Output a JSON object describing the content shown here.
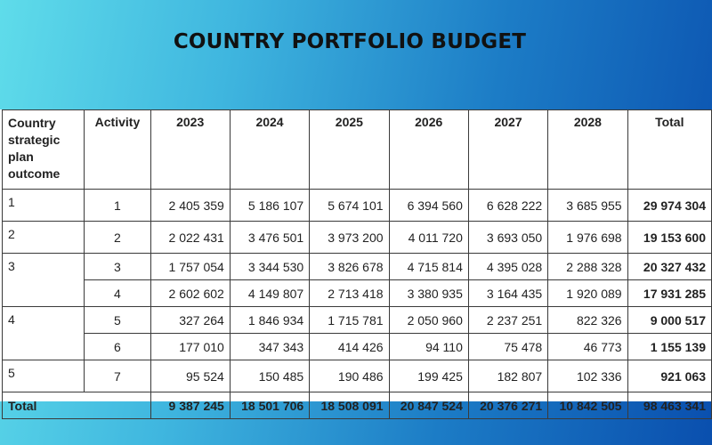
{
  "title": "COUNTRY PORTFOLIO BUDGET",
  "table": {
    "headers": {
      "outcome": "Country strategic plan outcome",
      "activity": "Activity",
      "years": [
        "2023",
        "2024",
        "2025",
        "2026",
        "2027",
        "2028"
      ],
      "total": "Total"
    },
    "rows": [
      {
        "outcome": "1",
        "activity": "1",
        "values": [
          "2 405 359",
          "5 186 107",
          "5 674 101",
          "6 394 560",
          "6 628 222",
          "3 685 955"
        ],
        "total": "29 974 304"
      },
      {
        "outcome": "2",
        "activity": "2",
        "values": [
          "2 022 431",
          "3 476 501",
          "3 973 200",
          "4 011 720",
          "3 693 050",
          "1 976 698"
        ],
        "total": "19 153 600"
      },
      {
        "outcome": "3",
        "activity": "3",
        "values": [
          "1 757 054",
          "3 344 530",
          "3 826 678",
          "4 715 814",
          "4 395 028",
          "2 288 328"
        ],
        "total": "20 327 432"
      },
      {
        "outcome": "",
        "activity": "4",
        "values": [
          "2 602 602",
          "4 149 807",
          "2 713 418",
          "3 380 935",
          "3 164 435",
          "1 920 089"
        ],
        "total": "17 931 285"
      },
      {
        "outcome": "4",
        "activity": "5",
        "values": [
          "327 264",
          "1 846 934",
          "1 715 781",
          "2 050 960",
          "2 237 251",
          "822 326"
        ],
        "total": "9 000 517"
      },
      {
        "outcome": "",
        "activity": "6",
        "values": [
          "177 010",
          "347 343",
          "414 426",
          "94 110",
          "75 478",
          "46 773"
        ],
        "total": "1 155 139"
      },
      {
        "outcome": "5",
        "activity": "7",
        "values": [
          "95 524",
          "150 485",
          "190 486",
          "199 425",
          "182 807",
          "102 336"
        ],
        "total": "921 063"
      }
    ],
    "totals": {
      "label": "Total",
      "values": [
        "9 387 245",
        "18 501 706",
        "18 508 091",
        "20 847 524",
        "20 376 271",
        "10 842 505"
      ],
      "grand_total": "98 463 341"
    }
  }
}
